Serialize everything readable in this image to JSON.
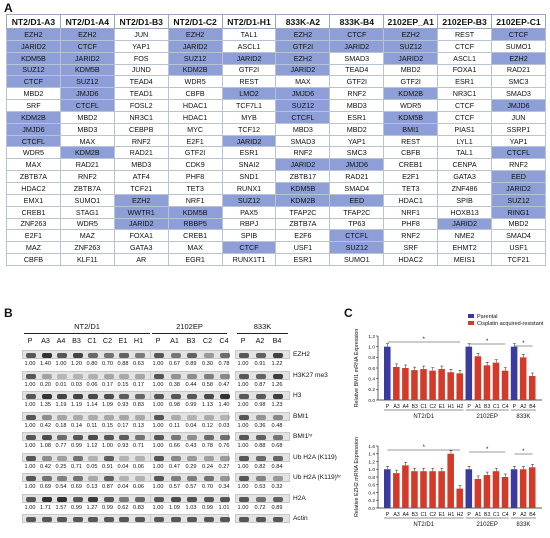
{
  "panel_a": {
    "letter": "A",
    "headers": [
      "NT2/D1-A3",
      "NT2/D1-A4",
      "NT2/D1-B3",
      "NT2/D1-C2",
      "NT2/D1-H1",
      "833K-A2",
      "833K-B4",
      "2102EP_A1",
      "2102EP-B3",
      "2102EP-C1"
    ],
    "rows": [
      [
        [
          "EZH2",
          1
        ],
        [
          "EZH2",
          1
        ],
        [
          "JUN",
          0
        ],
        [
          "EZH2",
          1
        ],
        [
          "TAL1",
          0
        ],
        [
          "EZH2",
          1
        ],
        [
          "CTCF",
          1
        ],
        [
          "EZH2",
          1
        ],
        [
          "REST",
          0
        ],
        [
          "CTCF",
          1
        ]
      ],
      [
        [
          "JARID2",
          1
        ],
        [
          "CTCF",
          1
        ],
        [
          "YAP1",
          0
        ],
        [
          "JARID2",
          1
        ],
        [
          "ASCL1",
          0
        ],
        [
          "GTF2I",
          1
        ],
        [
          "JARID2",
          1
        ],
        [
          "SUZ12",
          1
        ],
        [
          "CTCF",
          0
        ],
        [
          "SUMO1",
          0
        ]
      ],
      [
        [
          "KDM5B",
          1
        ],
        [
          "JARID2",
          1
        ],
        [
          "FOS",
          0
        ],
        [
          "SUZ12",
          1
        ],
        [
          "JARID2",
          1
        ],
        [
          "EZH2",
          1
        ],
        [
          "SMAD3",
          0
        ],
        [
          "JARID2",
          1
        ],
        [
          "ASCL1",
          0
        ],
        [
          "EZH2",
          1
        ]
      ],
      [
        [
          "SUZ12",
          1
        ],
        [
          "KDM5B",
          1
        ],
        [
          "JUND",
          0
        ],
        [
          "KDM2B",
          1
        ],
        [
          "GTF2I",
          0
        ],
        [
          "JARID2",
          1
        ],
        [
          "TEAD4",
          0
        ],
        [
          "MBD2",
          0
        ],
        [
          "FOXA1",
          0
        ],
        [
          "RAD21",
          0
        ]
      ],
      [
        [
          "CTCF",
          1
        ],
        [
          "SUZ12",
          1
        ],
        [
          "TEAD4",
          0
        ],
        [
          "WDR5",
          0
        ],
        [
          "REST",
          0
        ],
        [
          "MAX",
          0
        ],
        [
          "GTF2I",
          0
        ],
        [
          "GTF2I",
          0
        ],
        [
          "ESR1",
          0
        ],
        [
          "SMC3",
          0
        ]
      ],
      [
        [
          "MBD2",
          0
        ],
        [
          "JMJD6",
          1
        ],
        [
          "TEAD1",
          0
        ],
        [
          "CBFB",
          0
        ],
        [
          "LMO2",
          1
        ],
        [
          "JMJD6",
          1
        ],
        [
          "RNF2",
          0
        ],
        [
          "KDM2B",
          1
        ],
        [
          "NR3C1",
          0
        ],
        [
          "SMAD3",
          0
        ]
      ],
      [
        [
          "SRF",
          0
        ],
        [
          "CTCFL",
          1
        ],
        [
          "FOSL2",
          0
        ],
        [
          "HDAC1",
          0
        ],
        [
          "TCF7L1",
          0
        ],
        [
          "SUZ12",
          1
        ],
        [
          "MBD3",
          0
        ],
        [
          "WDR5",
          0
        ],
        [
          "CTCF",
          0
        ],
        [
          "JMJD6",
          1
        ]
      ],
      [
        [
          "KDM2B",
          1
        ],
        [
          "MBD2",
          0
        ],
        [
          "NR3C1",
          0
        ],
        [
          "HDAC1",
          0
        ],
        [
          "MYB",
          0
        ],
        [
          "CTCFL",
          1
        ],
        [
          "ESR1",
          0
        ],
        [
          "KDM5B",
          1
        ],
        [
          "CTCF",
          0
        ],
        [
          "JUN",
          0
        ]
      ],
      [
        [
          "JMJD6",
          1
        ],
        [
          "MBD3",
          0
        ],
        [
          "CEBPB",
          0
        ],
        [
          "MYC",
          0
        ],
        [
          "TCF12",
          0
        ],
        [
          "MBD3",
          0
        ],
        [
          "MBD2",
          0
        ],
        [
          "BMI1",
          1
        ],
        [
          "PIAS1",
          0
        ],
        [
          "SSRP1",
          0
        ]
      ],
      [
        [
          "CTCFL",
          1
        ],
        [
          "MAX",
          0
        ],
        [
          "RNF2",
          0
        ],
        [
          "E2F1",
          0
        ],
        [
          "JARID2",
          1
        ],
        [
          "SMAD3",
          0
        ],
        [
          "YAP1",
          0
        ],
        [
          "REST",
          0
        ],
        [
          "LYL1",
          0
        ],
        [
          "YAP1",
          0
        ]
      ],
      [
        [
          "WDR5",
          0
        ],
        [
          "KDM2B",
          1
        ],
        [
          "RAD21",
          0
        ],
        [
          "GTF2I",
          0
        ],
        [
          "ESR1",
          0
        ],
        [
          "RNF2",
          0
        ],
        [
          "SMC3",
          0
        ],
        [
          "CBFB",
          0
        ],
        [
          "TAL1",
          0
        ],
        [
          "CTCFL",
          1
        ]
      ],
      [
        [
          "MAX",
          0
        ],
        [
          "RAD21",
          0
        ],
        [
          "MBD3",
          0
        ],
        [
          "CDK9",
          0
        ],
        [
          "SNAI2",
          0
        ],
        [
          "JARID2",
          1
        ],
        [
          "JMJD6",
          1
        ],
        [
          "CREB1",
          0
        ],
        [
          "CENPA",
          0
        ],
        [
          "RNF2",
          0
        ]
      ],
      [
        [
          "ZBTB7A",
          0
        ],
        [
          "RNF2",
          0
        ],
        [
          "ATF4",
          0
        ],
        [
          "PHF8",
          0
        ],
        [
          "SND1",
          0
        ],
        [
          "ZBTB17",
          0
        ],
        [
          "RAD21",
          0
        ],
        [
          "E2F1",
          0
        ],
        [
          "GATA3",
          0
        ],
        [
          "EED",
          1
        ]
      ],
      [
        [
          "HDAC2",
          0
        ],
        [
          "ZBTB7A",
          0
        ],
        [
          "TCF21",
          0
        ],
        [
          "TET3",
          0
        ],
        [
          "RUNX1",
          0
        ],
        [
          "KDM5B",
          1
        ],
        [
          "SMAD4",
          0
        ],
        [
          "TET3",
          0
        ],
        [
          "ZNF486",
          0
        ],
        [
          "JARID2",
          1
        ]
      ],
      [
        [
          "EMX1",
          0
        ],
        [
          "SUMO1",
          0
        ],
        [
          "EZH2",
          1
        ],
        [
          "NRF1",
          0
        ],
        [
          "SUZ12",
          1
        ],
        [
          "KDM2B",
          1
        ],
        [
          "EED",
          1
        ],
        [
          "HDAC1",
          0
        ],
        [
          "SPIB",
          0
        ],
        [
          "SUZ12",
          1
        ]
      ],
      [
        [
          "CREB1",
          0
        ],
        [
          "STAG1",
          0
        ],
        [
          "WWTR1",
          1
        ],
        [
          "KDM5B",
          1
        ],
        [
          "PAX5",
          0
        ],
        [
          "TFAP2C",
          0
        ],
        [
          "TFAP2C",
          0
        ],
        [
          "NRF1",
          0
        ],
        [
          "HOXB13",
          0
        ],
        [
          "RING1",
          1
        ]
      ],
      [
        [
          "ZNF263",
          0
        ],
        [
          "WDR5",
          0
        ],
        [
          "JARID2",
          1
        ],
        [
          "RBBP5",
          1
        ],
        [
          "RBPJ",
          0
        ],
        [
          "ZBTB7A",
          0
        ],
        [
          "TP63",
          0
        ],
        [
          "PHF8",
          0
        ],
        [
          "JARID2",
          1
        ],
        [
          "MBD2",
          0
        ]
      ],
      [
        [
          "E2F1",
          0
        ],
        [
          "MAZ",
          0
        ],
        [
          "FOXA1",
          0
        ],
        [
          "CREB1",
          0
        ],
        [
          "SPIB",
          0
        ],
        [
          "E2F6",
          0
        ],
        [
          "CTCFL",
          1
        ],
        [
          "RNF2",
          0
        ],
        [
          "NME2",
          0
        ],
        [
          "SMAD4",
          0
        ]
      ],
      [
        [
          "MAZ",
          0
        ],
        [
          "ZNF263",
          0
        ],
        [
          "GATA3",
          0
        ],
        [
          "MAX",
          0
        ],
        [
          "CTCF",
          1
        ],
        [
          "USF1",
          0
        ],
        [
          "SUZ12",
          1
        ],
        [
          "SRF",
          0
        ],
        [
          "EHMT2",
          0
        ],
        [
          "USF1",
          0
        ]
      ],
      [
        [
          "CBFB",
          0
        ],
        [
          "KLF11",
          0
        ],
        [
          "AR",
          0
        ],
        [
          "EGR1",
          0
        ],
        [
          "RUNX1T1",
          0
        ],
        [
          "ESR1",
          0
        ],
        [
          "SUMO1",
          0
        ],
        [
          "HDAC2",
          0
        ],
        [
          "MEIS1",
          0
        ],
        [
          "TCF21",
          0
        ]
      ]
    ]
  },
  "panel_b": {
    "letter": "B",
    "groups": [
      "NT2/D1",
      "2102EP",
      "833K"
    ],
    "lanes": [
      "P",
      "A3",
      "A4",
      "B3",
      "C1",
      "C2",
      "E1",
      "H1",
      "P",
      "A1",
      "B3",
      "C2",
      "C4",
      "P",
      "A2",
      "B4"
    ],
    "blots": [
      {
        "name": "EZH2",
        "quant": [
          "1.00",
          "1.40",
          "1.00",
          "1.20",
          "0.80",
          "0.70",
          "0.88",
          "0.63",
          "1.00",
          "0.67",
          "0.89",
          "0.30",
          "0.78",
          "1.00",
          "0.91",
          "1.22"
        ]
      },
      {
        "name": "H3K27 me3",
        "quant": [
          "1.00",
          "0.20",
          "0.01",
          "0.03",
          "0.06",
          "0.17",
          "0.15",
          "0.17",
          "1.00",
          "0.38",
          "0.44",
          "0.58",
          "0.47",
          "1.00",
          "0.87",
          "1.26"
        ]
      },
      {
        "name": "H3",
        "quant": [
          "1.00",
          "1.35",
          "1.19",
          "1.19",
          "1.14",
          "1.09",
          "0.93",
          "0.83",
          "1.00",
          "0.98",
          "0.99",
          "1.13",
          "1.40",
          "1.00",
          "0.98",
          "1.23"
        ]
      },
      {
        "name": "BMI1",
        "quant": [
          "1.00",
          "0.42",
          "0.18",
          "0.14",
          "0.11",
          "0.15",
          "0.17",
          "0.13",
          "1.00",
          "0.11",
          "0.04",
          "0.12",
          "0.03",
          "1.00",
          "0.36",
          "0.48"
        ]
      },
      {
        "name": "BMI1ʰʳ",
        "quant": [
          "1.00",
          "1.08",
          "0.77",
          "0.99",
          "1.12",
          "1.00",
          "0.93",
          "0.71",
          "1.00",
          "0.66",
          "0.43",
          "0.78",
          "0.76",
          "1.00",
          "0.88",
          "0.68"
        ]
      },
      {
        "name": "Ub H2A (K119)",
        "quant": [
          "1.00",
          "0.42",
          "0.25",
          "0.71",
          "0.05",
          "0.91",
          "0.04",
          "0.06",
          "1.00",
          "0.47",
          "0.29",
          "0.24",
          "0.27",
          "1.00",
          "0.82",
          "0.84"
        ]
      },
      {
        "name": "Ub H2A (K119)ʰʳ",
        "quant": [
          "1.00",
          "0.69",
          "0.54",
          "0.69",
          "0.13",
          "0.87",
          "0.04",
          "0.06",
          "1.00",
          "0.57",
          "0.57",
          "0.70",
          "0.34",
          "1.00",
          "0.53",
          "0.32"
        ]
      },
      {
        "name": "H2A",
        "quant": [
          "1.00",
          "1.71",
          "1.57",
          "0.99",
          "1.27",
          "0.99",
          "0.62",
          "0.83",
          "1.00",
          "1.09",
          "1.03",
          "0.99",
          "1.01",
          "1.00",
          "0.72",
          "0.89"
        ]
      },
      {
        "name": "Actin",
        "quant": []
      }
    ]
  },
  "panel_c": {
    "letter": "C",
    "legend_parental": "Parental",
    "legend_resistant": "Cisplatin acquired-resistant",
    "color_parental": "#3a3aa0",
    "color_resistant": "#d23b2a",
    "chart_data": [
      {
        "type": "bar",
        "ylabel": "Relative BMI1 mRNA Expression",
        "ylim": [
          0,
          1.2
        ],
        "yticks": [
          "0.0",
          "0.2",
          "0.4",
          "0.6",
          "0.8",
          "1.0",
          "1.2"
        ],
        "categories": [
          "P",
          "A3",
          "A4",
          "B3",
          "C1",
          "C2",
          "E1",
          "H1",
          "H2",
          "P",
          "A1",
          "B3",
          "C1",
          "C4",
          "P",
          "A2",
          "B4"
        ],
        "values": [
          1.0,
          0.62,
          0.6,
          0.56,
          0.58,
          0.55,
          0.58,
          0.52,
          0.5,
          1.0,
          0.82,
          0.65,
          0.7,
          0.55,
          1.0,
          0.8,
          0.45
        ],
        "groups": [
          "NT2/D1",
          "2102EP",
          "833K"
        ],
        "significance": "*"
      },
      {
        "type": "bar",
        "ylabel": "Relative EZH2 mRNA Expression",
        "ylim": [
          0,
          1.6
        ],
        "yticks": [
          "0.0",
          "0.2",
          "0.4",
          "0.6",
          "0.8",
          "1.0",
          "1.2",
          "1.4",
          "1.6"
        ],
        "categories": [
          "P",
          "A3",
          "A4",
          "B3",
          "C1",
          "C2",
          "E1",
          "H1",
          "H2",
          "P",
          "A1",
          "B3",
          "C1",
          "C4",
          "P",
          "A2",
          "B4"
        ],
        "values": [
          1.0,
          0.9,
          1.1,
          0.95,
          0.95,
          0.95,
          0.95,
          1.4,
          0.5,
          1.0,
          0.75,
          0.85,
          0.95,
          0.8,
          1.0,
          1.0,
          1.05
        ],
        "groups": [
          "NT2/D1",
          "2102EP",
          "833K"
        ],
        "significance": "*"
      }
    ]
  }
}
